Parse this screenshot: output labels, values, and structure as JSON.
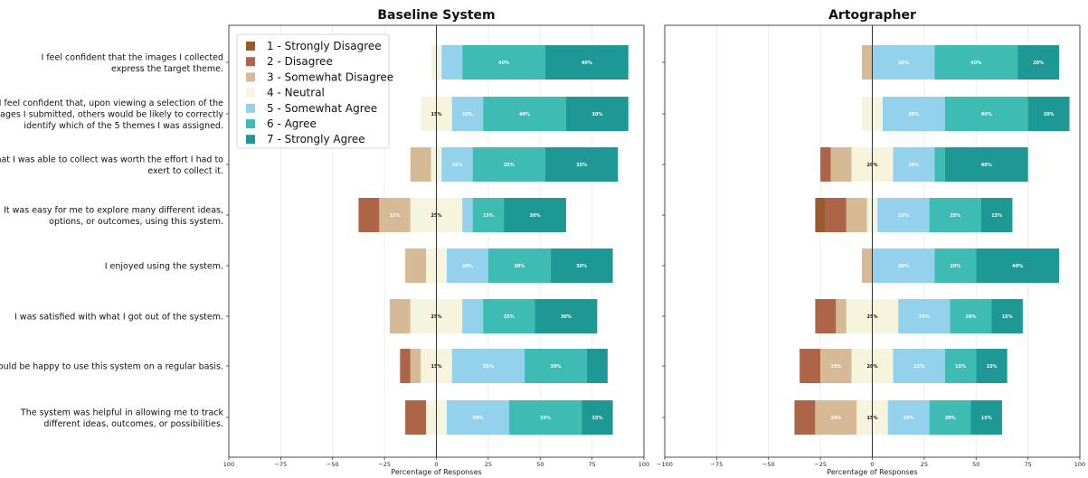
{
  "chart_data": {
    "type": "bar",
    "subtype": "diverging-stacked-likert",
    "legend_placement": "upper-left",
    "grid": true,
    "likert_scale": [
      {
        "name": "1 - Strongly Disagree",
        "color": "#9b5a2b"
      },
      {
        "name": "2 - Disagree",
        "color": "#ad6447"
      },
      {
        "name": "3 - Somewhat Disagree",
        "color": "#d6b995"
      },
      {
        "name": "4 - Neutral",
        "color": "#f6f4dd"
      },
      {
        "name": "5 - Somewhat Agree",
        "color": "#93d1ed"
      },
      {
        "name": "6 - Agree",
        "color": "#3ebbb3"
      },
      {
        "name": "7 - Strongly Agree",
        "color": "#1e9894"
      }
    ],
    "questions": [
      "I feel confident that the images I collected\nexpress the target theme.",
      "I feel confident that, upon viewing a selection of the\nimages I submitted, others would be likely to correctly\nidentify which of the 5 themes I was assigned.",
      "What I was able to collect was worth the effort I had to\nexert to collect it.",
      "It was easy for me to explore many different ideas,\noptions, or outcomes, using this system.",
      "I enjoyed using the system.",
      "I was satisfied with what I got out of the system.",
      "I would be happy to use this system on a regular basis.",
      "The system was helpful in allowing me to track\ndifferent ideas, outcomes, or possibilities."
    ],
    "xlabel": "Percentage of Responses",
    "xlim": [
      -100,
      100
    ],
    "xticks": [
      -100,
      -75,
      -50,
      -25,
      0,
      25,
      50,
      75,
      100
    ],
    "xtick_labels_left": [
      "100",
      "−75",
      "−50",
      "−25",
      "0",
      "25",
      "50",
      "75",
      "100"
    ],
    "xtick_labels_right": [
      "−100",
      "−75",
      "−50",
      "−25",
      "0",
      "25",
      "50",
      "75",
      "100"
    ],
    "panels": [
      {
        "title": "Baseline System",
        "data": [
          [
            0,
            0,
            0,
            5,
            10,
            40,
            40
          ],
          [
            0,
            0,
            0,
            15,
            15,
            40,
            30
          ],
          [
            0,
            0,
            10,
            5,
            15,
            35,
            35
          ],
          [
            0,
            10,
            15,
            25,
            5,
            15,
            30
          ],
          [
            0,
            0,
            10,
            10,
            20,
            30,
            30
          ],
          [
            0,
            0,
            10,
            25,
            10,
            25,
            30
          ],
          [
            0,
            5,
            5,
            15,
            35,
            30,
            10
          ],
          [
            0,
            10,
            0,
            10,
            30,
            35,
            15
          ]
        ]
      },
      {
        "title": "Artographer",
        "data": [
          [
            0,
            0,
            5,
            0,
            30,
            40,
            20
          ],
          [
            0,
            0,
            0,
            10,
            30,
            40,
            20
          ],
          [
            0,
            5,
            10,
            20,
            20,
            5,
            40
          ],
          [
            5,
            10,
            10,
            5,
            25,
            25,
            15
          ],
          [
            0,
            0,
            5,
            0,
            30,
            20,
            40
          ],
          [
            0,
            10,
            5,
            25,
            25,
            20,
            15
          ],
          [
            0,
            10,
            15,
            20,
            25,
            15,
            15
          ],
          [
            0,
            10,
            20,
            15,
            20,
            20,
            15
          ]
        ]
      }
    ]
  }
}
